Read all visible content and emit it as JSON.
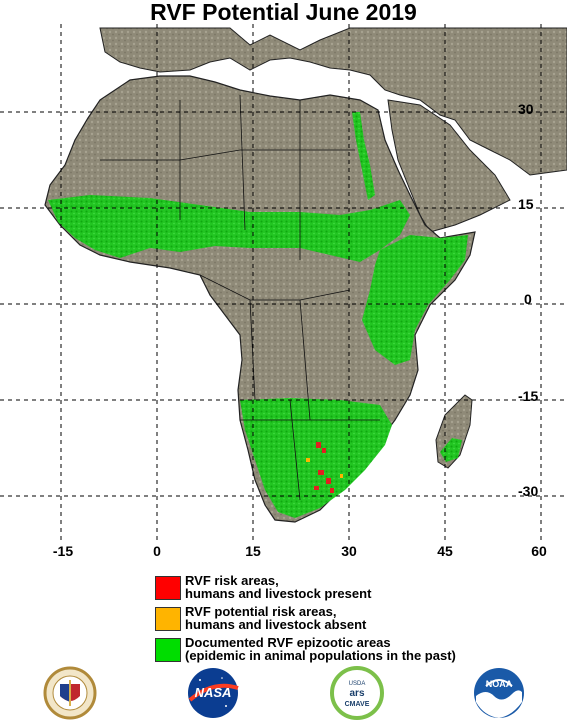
{
  "title": "RVF Potential June 2019",
  "lon_labels": [
    "-15",
    "0",
    "15",
    "30",
    "45",
    "60"
  ],
  "lat_labels": [
    "30",
    "15",
    "0",
    "-15",
    "-30"
  ],
  "legend": [
    {
      "line1": "RVF risk areas,",
      "line2": "humans and livestock present",
      "color": "#ff0000"
    },
    {
      "line1": "RVF potential risk areas,",
      "line2": "humans and livestock absent",
      "color": "#ffb400"
    },
    {
      "line1": "Documented RVF epizootic areas",
      "line2": "(epidemic in animal populations in the past)",
      "color": "#00dd00"
    }
  ],
  "logos": [
    {
      "name": "defense-health-agency-logo"
    },
    {
      "name": "nasa-logo",
      "text": "NASA"
    },
    {
      "name": "usda-cmave-logo",
      "text1": "USDA",
      "text2": "ars",
      "text3": "CMAVE"
    },
    {
      "name": "noaa-logo",
      "text": "NOAA"
    }
  ],
  "colors": {
    "land": "#8f8a78",
    "ocean": "#ffffff",
    "epizootic": "#22c522",
    "risk": "#e02020"
  }
}
